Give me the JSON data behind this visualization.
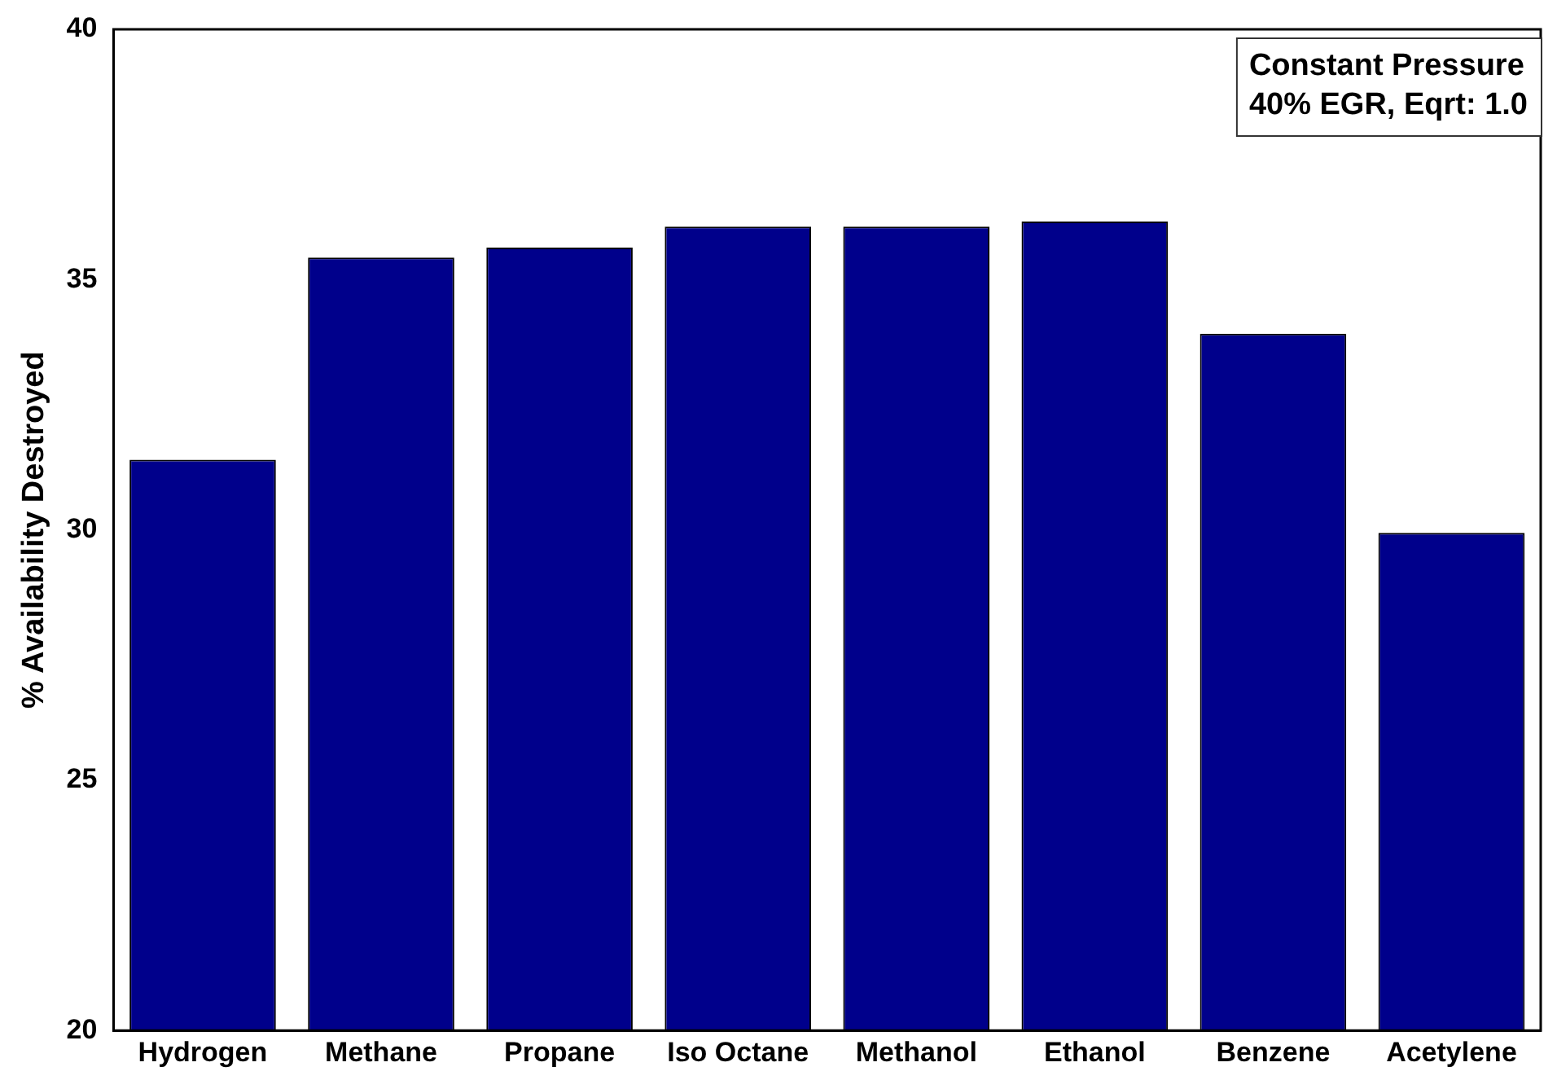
{
  "chart_data": {
    "type": "bar",
    "ylabel": "% Availability Destroyed",
    "categories": [
      "Hydrogen",
      "Methane",
      "Propane",
      "Iso Octane",
      "Methanol",
      "Ethanol",
      "Benzene",
      "Acetylene"
    ],
    "values": [
      31.4,
      35.44,
      35.64,
      36.06,
      36.06,
      36.16,
      33.92,
      29.94
    ],
    "color": "#00008b",
    "ylim": [
      20,
      40
    ],
    "yticks": [
      20,
      25,
      30,
      35,
      40
    ],
    "grid": false,
    "annotations": [
      "Constant Pressure",
      "40% EGR, Eqrt: 1.0"
    ]
  }
}
